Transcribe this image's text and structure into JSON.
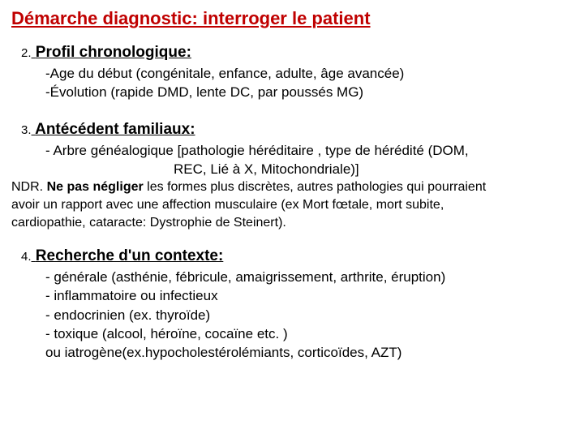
{
  "title": "Démarche diagnostic: interroger le patient",
  "title_color": "#c00000",
  "background_color": "#ffffff",
  "sections": {
    "s1": {
      "num": "2.",
      "heading": "Profil chronologique:",
      "lines": [
        "-Age du début  (congénitale, enfance, adulte, âge avancée)",
        "-Évolution (rapide DMD, lente DC, par poussés MG)"
      ]
    },
    "s2": {
      "num": "3.",
      "heading": "Antécédent familiaux:",
      "lines": [
        "- Arbre généalogique [pathologie héréditaire , type de hérédité (DOM,",
        "REC, Lié à X, Mitochondriale)]"
      ]
    },
    "ndr": {
      "bold": "Ne pas négliger",
      "prefix": "NDR. ",
      "rest1": " les formes plus discrètes, autres pathologies qui pourraient",
      "line2": "avoir un rapport avec une affection musculaire (ex Mort fœtale, mort subite,",
      "line3": "cardiopathie, cataracte: Dystrophie de Steinert)."
    },
    "s3": {
      "num": "4.",
      "heading": "Recherche d'un contexte:",
      "lines": [
        "- générale (asthénie, fébricule, amaigrissement, arthrite, éruption)",
        " - inflammatoire ou infectieux",
        " - endocrinien (ex. thyroïde)",
        "- toxique (alcool, héroïne, cocaïne etc. )",
        "  ou iatrogène(ex.hypocholestérolémiants, corticoïdes, AZT)"
      ]
    }
  },
  "typography": {
    "title_fontsize": 22,
    "heading_fontsize": 19,
    "body_fontsize": 17,
    "ndr_fontsize": 16,
    "font_family": "Arial"
  }
}
